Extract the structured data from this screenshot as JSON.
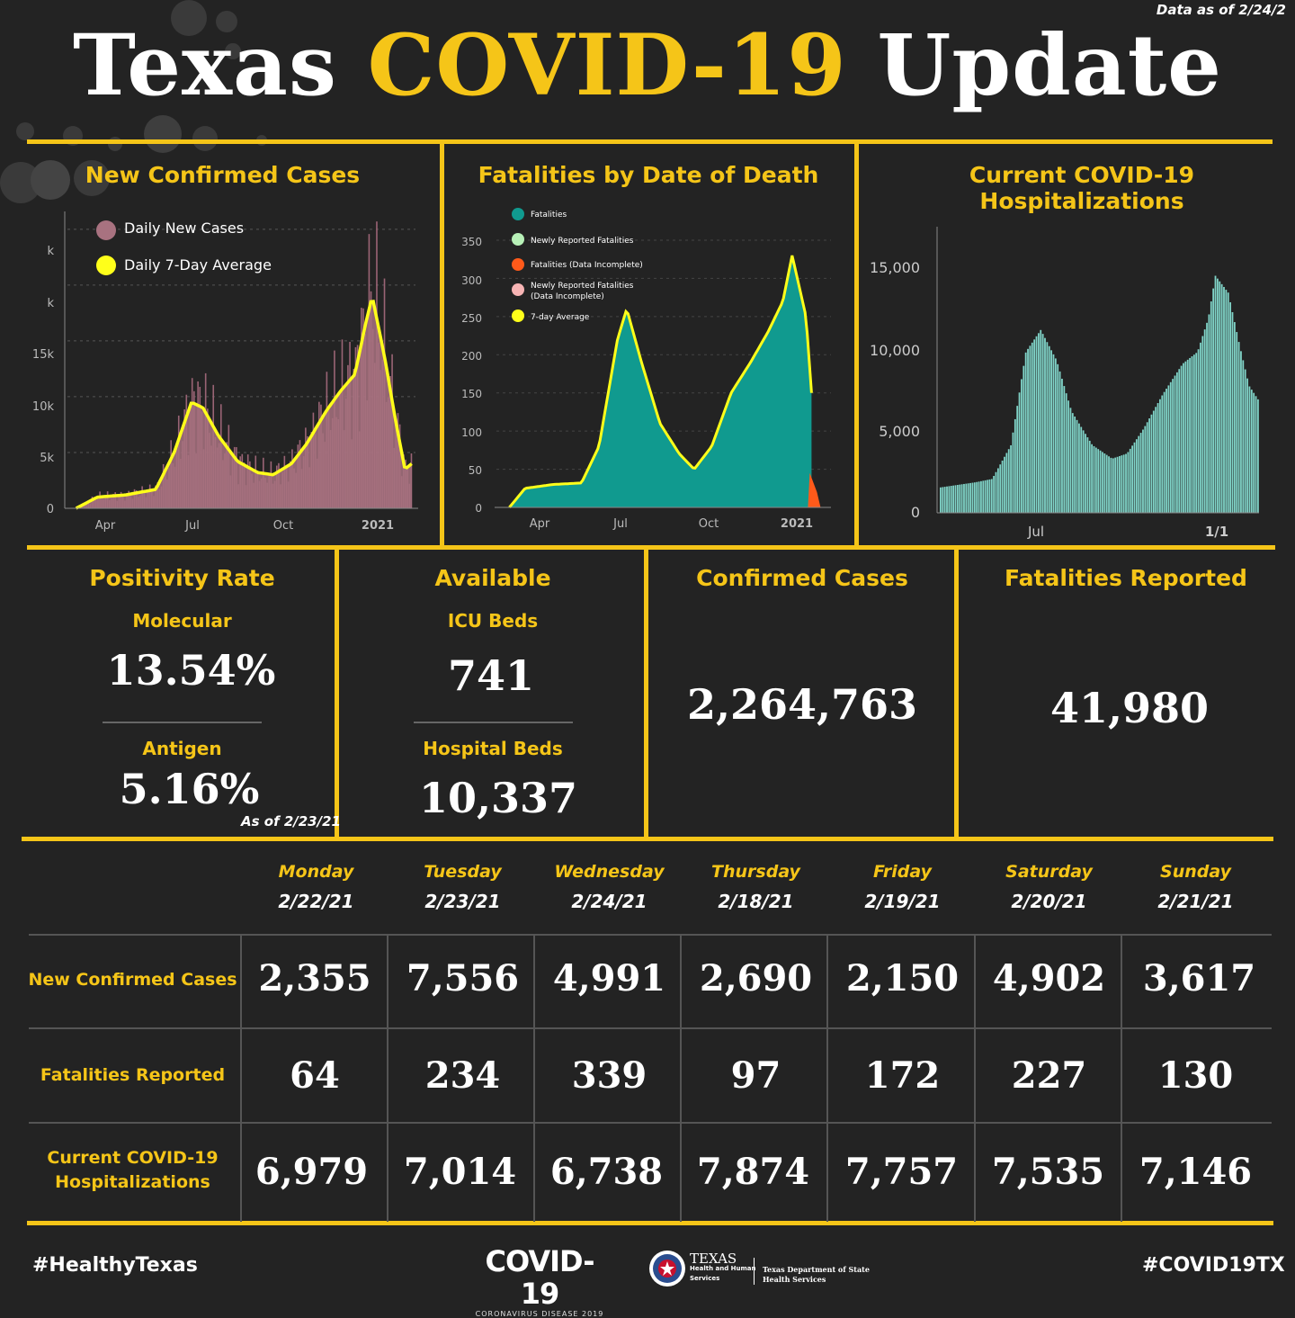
{
  "header": {
    "as_of": "Data as of 2/24/2",
    "title_part1": "Texas",
    "title_part2": "COVID-19",
    "title_part3": "Update"
  },
  "colors": {
    "accent": "#f5c518",
    "background": "#232323",
    "cases": "#a87280",
    "fatalities": "#109a8f",
    "hospitalizations": "#80d4c8",
    "average": "#ffff1a"
  },
  "charts": {
    "cases": {
      "title": "New Confirmed Cases",
      "legend": [
        "Daily New Cases",
        "Daily 7-Day Average"
      ],
      "y_ticks": [
        "0",
        "5k",
        "10k",
        "15k",
        "k",
        "k"
      ],
      "x_ticks": [
        "Apr",
        "Jul",
        "Oct",
        "2021"
      ]
    },
    "fatalities": {
      "title": "Fatalities by Date of Death",
      "legend": [
        "Fatalities",
        "Newly Reported Fatalities",
        "Fatalities (Data Incomplete)",
        "Newly Reported Fatalities",
        "(Data Incomplete)",
        "7-day Average"
      ],
      "y_ticks": [
        "0",
        "50",
        "100",
        "150",
        "200",
        "250",
        "300",
        "350"
      ],
      "x_ticks": [
        "Apr",
        "Jul",
        "Oct",
        "2021"
      ]
    },
    "hospitalizations": {
      "title": "Current COVID-19 Hospitalizations",
      "y_ticks": [
        "0",
        "5,000",
        "10,000",
        "15,000"
      ],
      "x_ticks": [
        "Jul",
        "1/1"
      ]
    }
  },
  "chart_data": [
    {
      "type": "area",
      "title": "New Confirmed Cases",
      "x_range": [
        "2020-03",
        "2021-02"
      ],
      "ylim": [
        0,
        27000
      ],
      "grid": true,
      "legend_position": "top-left",
      "series": [
        {
          "name": "Daily 7-Day Average",
          "x": [
            "2020-03-10",
            "2020-04-01",
            "2020-05-01",
            "2020-06-01",
            "2020-06-20",
            "2020-07-08",
            "2020-07-20",
            "2020-08-05",
            "2020-08-25",
            "2020-09-15",
            "2020-10-01",
            "2020-10-20",
            "2020-11-05",
            "2020-11-25",
            "2020-12-10",
            "2020-12-25",
            "2021-01-05",
            "2021-01-12",
            "2021-01-25",
            "2021-02-05",
            "2021-02-15",
            "2021-02-22"
          ],
          "values": [
            0,
            1000,
            1200,
            1700,
            5000,
            9500,
            9000,
            6500,
            4200,
            3200,
            3000,
            4000,
            5800,
            8700,
            10500,
            12000,
            16500,
            19000,
            13500,
            8000,
            3500,
            4000
          ]
        }
      ]
    },
    {
      "type": "area",
      "title": "Fatalities by Date of Death",
      "x_range": [
        "2020-03",
        "2021-02"
      ],
      "ylim": [
        0,
        370
      ],
      "grid": true,
      "legend_position": "top-left",
      "series": [
        {
          "name": "7-day Average",
          "x": [
            "2020-03-15",
            "2020-04-01",
            "2020-05-01",
            "2020-06-01",
            "2020-06-20",
            "2020-07-10",
            "2020-07-20",
            "2020-08-05",
            "2020-08-25",
            "2020-09-15",
            "2020-10-01",
            "2020-10-20",
            "2020-11-10",
            "2020-12-01",
            "2020-12-20",
            "2021-01-05",
            "2021-01-15",
            "2021-01-30",
            "2021-02-05"
          ],
          "values": [
            0,
            25,
            30,
            32,
            80,
            220,
            260,
            190,
            110,
            70,
            50,
            80,
            150,
            190,
            230,
            270,
            330,
            250,
            150
          ]
        }
      ]
    },
    {
      "type": "bar",
      "title": "Current COVID-19 Hospitalizations",
      "x_range": [
        "2020-04",
        "2021-02"
      ],
      "ylim": [
        0,
        17000
      ],
      "grid": false,
      "series": [
        {
          "name": "",
          "x": [
            "2020-04-10",
            "2020-05-15",
            "2020-06-01",
            "2020-06-20",
            "2020-07-05",
            "2020-07-20",
            "2020-08-05",
            "2020-08-20",
            "2020-09-10",
            "2020-09-30",
            "2020-10-15",
            "2020-11-01",
            "2020-11-20",
            "2020-12-10",
            "2020-12-25",
            "2021-01-05",
            "2021-01-12",
            "2021-01-25",
            "2021-02-05",
            "2021-02-15",
            "2021-02-24"
          ],
          "values": [
            1500,
            1800,
            2000,
            4000,
            9500,
            10800,
            9000,
            6000,
            4000,
            3200,
            3500,
            5000,
            7000,
            8800,
            9500,
            11500,
            14000,
            13000,
            10000,
            7500,
            6700
          ]
        }
      ]
    }
  ],
  "stats": {
    "positivity": {
      "title": "Positivity Rate",
      "molecular_label": "Molecular",
      "molecular_value": "13.54%",
      "antigen_label": "Antigen",
      "antigen_value": "5.16%",
      "note": "As of 2/23/21"
    },
    "available": {
      "title": "Available",
      "icu_label": "ICU Beds",
      "icu_value": "741",
      "hospital_label": "Hospital Beds",
      "hospital_value": "10,337"
    },
    "confirmed": {
      "title": "Confirmed Cases",
      "value": "2,264,763"
    },
    "fatalities": {
      "title": "Fatalities Reported",
      "value": "41,980"
    }
  },
  "table": {
    "days": [
      {
        "day": "Monday",
        "date": "2/22/21"
      },
      {
        "day": "Tuesday",
        "date": "2/23/21"
      },
      {
        "day": "Wednesday",
        "date": "2/24/21"
      },
      {
        "day": "Thursday",
        "date": "2/18/21"
      },
      {
        "day": "Friday",
        "date": "2/19/21"
      },
      {
        "day": "Saturday",
        "date": "2/20/21"
      },
      {
        "day": "Sunday",
        "date": "2/21/21"
      }
    ],
    "rows": [
      {
        "label": "New Confirmed Cases",
        "values": [
          "2,355",
          "7,556",
          "4,991",
          "2,690",
          "2,150",
          "4,902",
          "3,617"
        ]
      },
      {
        "label": "Fatalities Reported",
        "values": [
          "64",
          "234",
          "339",
          "97",
          "172",
          "227",
          "130"
        ]
      },
      {
        "label_line1": "Current COVID-19",
        "label_line2": "Hospitalizations",
        "values": [
          "6,979",
          "7,014",
          "6,738",
          "7,874",
          "7,757",
          "7,535",
          "7,146"
        ]
      }
    ]
  },
  "footer": {
    "left_hashtag": "#HealthyTexas",
    "logo_main": "COVID-19",
    "logo_sub": "CORONAVIRUS DISEASE 2019",
    "agency1_title": "TEXAS",
    "agency1_sub1": "Health and Human",
    "agency1_sub2": "Services",
    "agency2_line1": "Texas Department of State",
    "agency2_line2": "Health Services",
    "right_hashtag": "#COVID19TX"
  }
}
